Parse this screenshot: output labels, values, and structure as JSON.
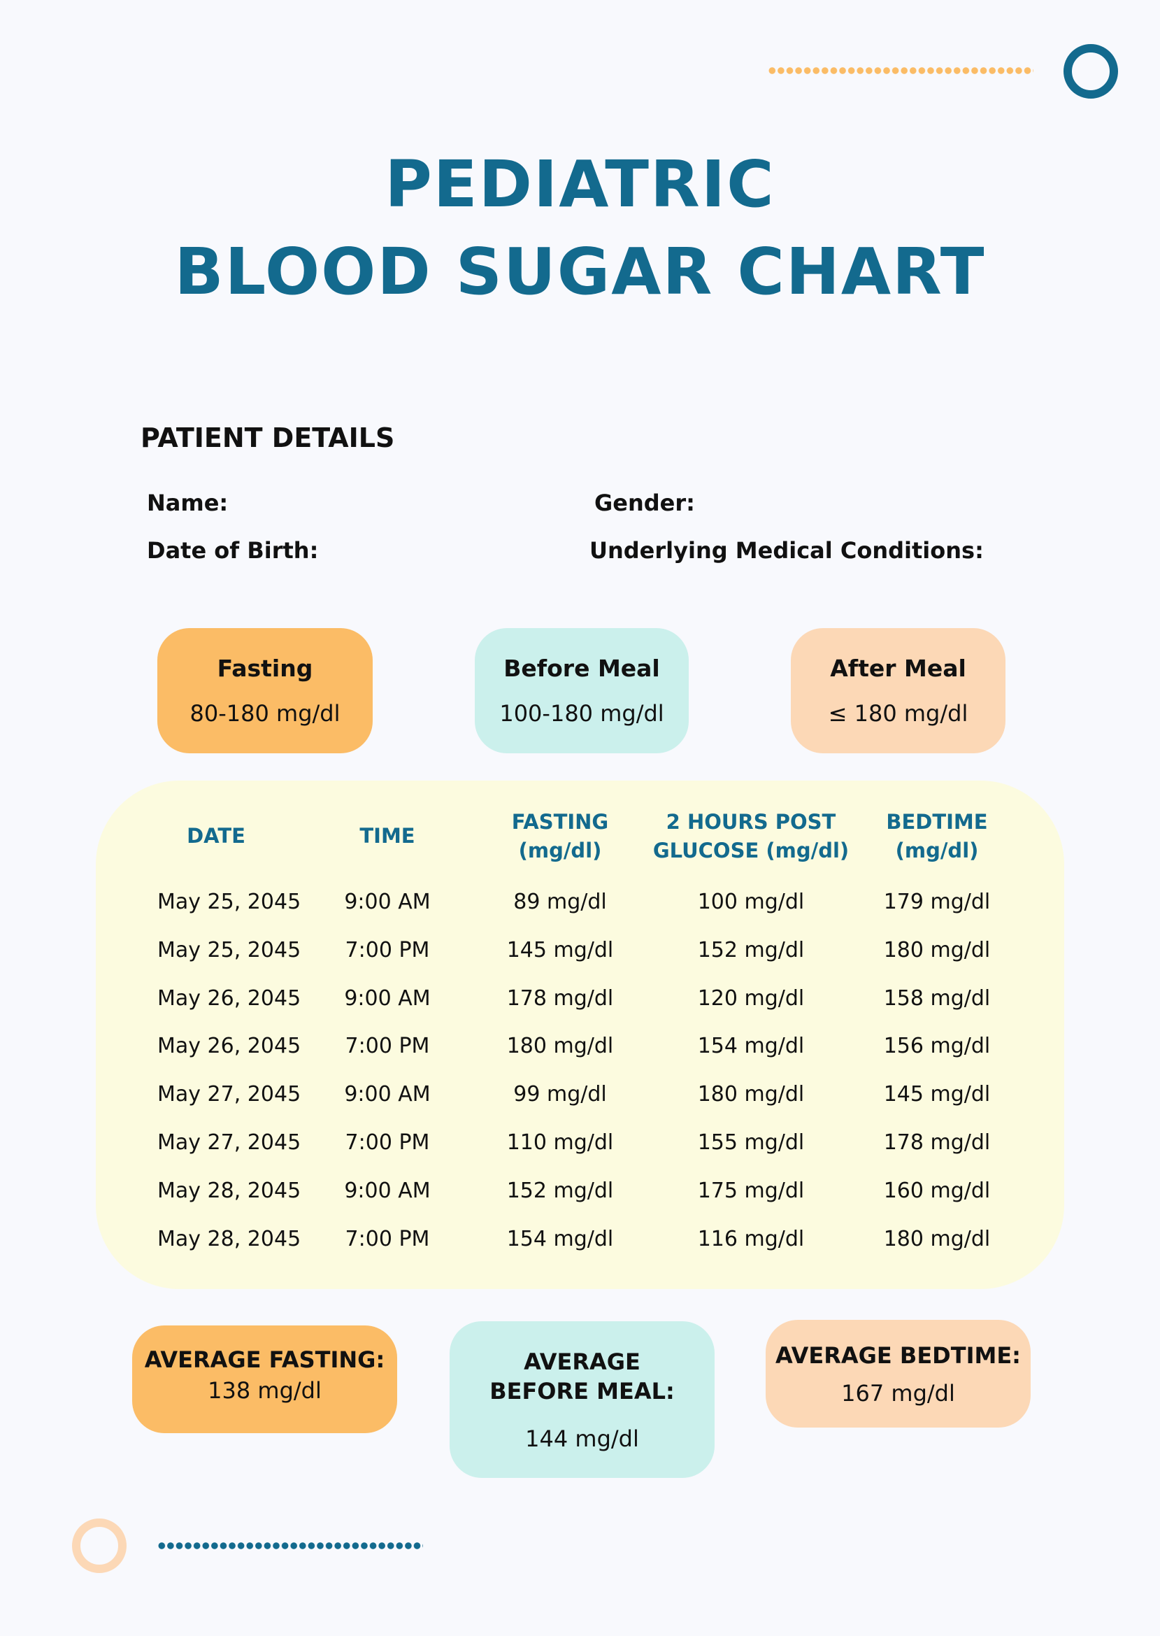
{
  "title": {
    "line1": "PEDIATRIC",
    "line2": "BLOOD SUGAR CHART"
  },
  "patient_details": {
    "heading": "PATIENT DETAILS",
    "name_label": "Name:",
    "gender_label": "Gender:",
    "dob_label": "Date of Birth:",
    "conditions_label": "Underlying Medical Conditions:"
  },
  "ranges": [
    {
      "label": "Fasting",
      "value": "80-180 mg/dl"
    },
    {
      "label": "Before Meal",
      "value": "100-180 mg/dl"
    },
    {
      "label": "After Meal",
      "value": "≤ 180 mg/dl"
    }
  ],
  "table": {
    "headers": [
      {
        "line1": "DATE",
        "line2": ""
      },
      {
        "line1": "TIME",
        "line2": ""
      },
      {
        "line1": "FASTING",
        "line2": "(mg/dl)"
      },
      {
        "line1": "2 HOURS POST",
        "line2": "GLUCOSE (mg/dl)"
      },
      {
        "line1": "BEDTIME",
        "line2": "(mg/dl)"
      }
    ],
    "rows": [
      [
        "May 25, 2045",
        "9:00 AM",
        "89 mg/dl",
        "100 mg/dl",
        "179 mg/dl"
      ],
      [
        "May 25, 2045",
        "7:00 PM",
        "145 mg/dl",
        "152 mg/dl",
        "180 mg/dl"
      ],
      [
        "May 26, 2045",
        "9:00 AM",
        "178 mg/dl",
        "120 mg/dl",
        "158 mg/dl"
      ],
      [
        "May 26, 2045",
        "7:00 PM",
        "180 mg/dl",
        "154 mg/dl",
        "156 mg/dl"
      ],
      [
        "May 27, 2045",
        "9:00 AM",
        "99 mg/dl",
        "180 mg/dl",
        "145 mg/dl"
      ],
      [
        "May 27, 2045",
        "7:00 PM",
        "110 mg/dl",
        "155 mg/dl",
        "178 mg/dl"
      ],
      [
        "May 28, 2045",
        "9:00 AM",
        "152 mg/dl",
        "175 mg/dl",
        "160 mg/dl"
      ],
      [
        "May 28, 2045",
        "7:00 PM",
        "154 mg/dl",
        "116 mg/dl",
        "180 mg/dl"
      ]
    ]
  },
  "averages": {
    "fasting": {
      "label": "AVERAGE FASTING:",
      "value": "138 mg/dl"
    },
    "before_meal": {
      "label_line1": "AVERAGE",
      "label_line2": "BEFORE MEAL:",
      "value": "144 mg/dl"
    },
    "bedtime": {
      "label": "AVERAGE BEDTIME:",
      "value": "167 mg/dl"
    }
  },
  "colors": {
    "title": "#136a8e",
    "orange": "#fbbc66",
    "teal": "#cbf0ec",
    "peach": "#fcd8b6",
    "table_bg": "#fcfbdf"
  }
}
